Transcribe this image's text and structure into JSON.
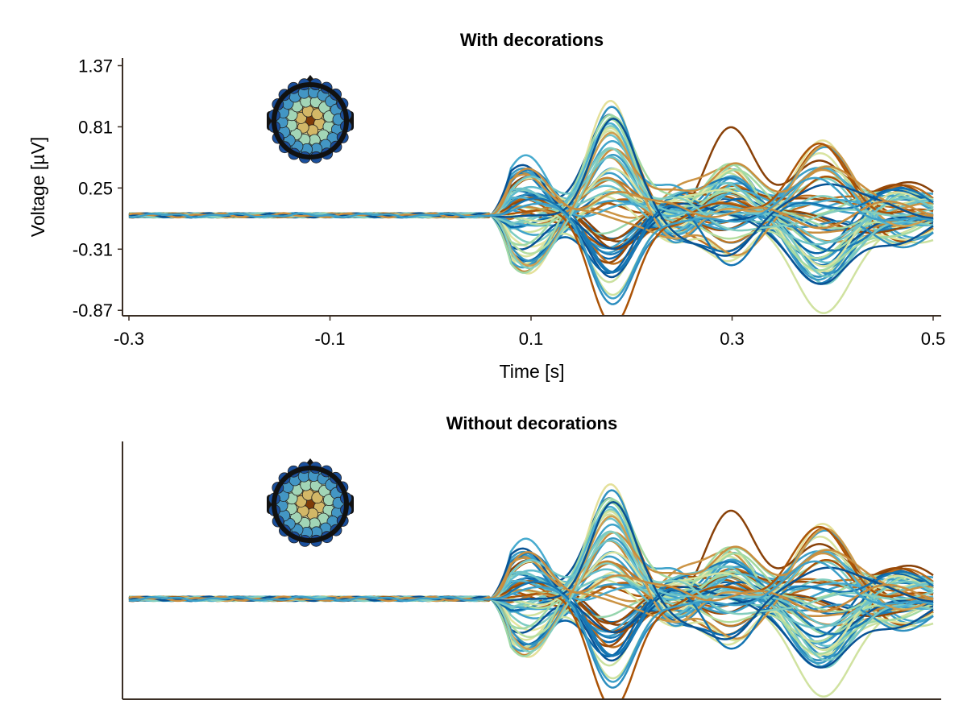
{
  "chart_data": [
    {
      "type": "line",
      "title": "With decorations",
      "xlabel": "Time [s]",
      "ylabel": "Voltage [µV]",
      "xlim": [
        -0.3,
        0.5
      ],
      "ylim": [
        -0.92,
        1.44
      ],
      "xticks": [
        "-0.3",
        "-0.1",
        "0.1",
        "0.3",
        "0.5"
      ],
      "yticks": [
        "-0.87",
        "-0.31",
        "0.25",
        "0.81",
        "1.37"
      ],
      "decorations": true,
      "topoplot_inset": true,
      "series_count": 64,
      "colormap": [
        "#7f3b08",
        "#b35806",
        "#d8b365",
        "#e6e6a0",
        "#a6dba0",
        "#80cdc1",
        "#4eb3d3",
        "#2b8cbe",
        "#0868ac",
        "#084081"
      ],
      "baseline_period": [
        -0.3,
        0.06
      ],
      "peak_times_s": [
        0.09,
        0.18,
        0.3,
        0.39
      ],
      "max_value": 1.37,
      "min_value": -0.87
    },
    {
      "type": "line",
      "title": "Without decorations",
      "xlabel": "",
      "ylabel": "",
      "xlim": [
        -0.3,
        0.5
      ],
      "ylim": [
        -0.92,
        1.44
      ],
      "xticks": [],
      "yticks": [],
      "decorations": false,
      "topoplot_inset": true,
      "series_count": 64,
      "colormap": [
        "#7f3b08",
        "#b35806",
        "#d8b365",
        "#e6e6a0",
        "#a6dba0",
        "#80cdc1",
        "#4eb3d3",
        "#2b8cbe",
        "#0868ac",
        "#084081"
      ],
      "baseline_period": [
        -0.3,
        0.06
      ],
      "peak_times_s": [
        0.09,
        0.18,
        0.3,
        0.39
      ],
      "max_value": 1.37,
      "min_value": -0.87
    }
  ]
}
